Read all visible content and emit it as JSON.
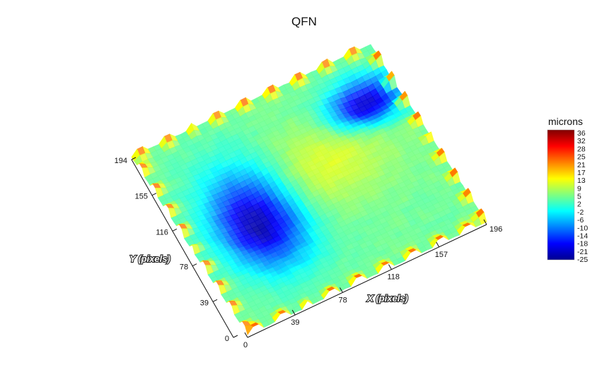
{
  "chart_data": {
    "type": "heatmap",
    "title": "QFN",
    "xlabel": "X (pixels)",
    "ylabel": "Y (pixels)",
    "x_ticks": [
      "0",
      "39",
      "78",
      "118",
      "157",
      "196"
    ],
    "y_ticks": [
      "0",
      "39",
      "78",
      "116",
      "155",
      "194"
    ],
    "xlim": [
      0,
      196
    ],
    "ylim": [
      0,
      194
    ],
    "colorbar": {
      "title": "microns",
      "ticks": [
        "36",
        "32",
        "28",
        "25",
        "21",
        "17",
        "13",
        "9",
        "5",
        "2",
        "-2",
        "-6",
        "-10",
        "-14",
        "-18",
        "-21",
        "-25"
      ],
      "range": [
        -25,
        36
      ],
      "colormap": "jet"
    },
    "surface": {
      "description_units": "microns",
      "features": [
        {
          "kind": "depression",
          "x": 55,
          "y": 95,
          "depth": -25
        },
        {
          "kind": "depression",
          "x": 170,
          "y": 150,
          "depth": -22
        },
        {
          "kind": "raised_leads",
          "edges": [
            "left",
            "top",
            "bottom",
            "right"
          ],
          "height": 30
        }
      ]
    }
  }
}
